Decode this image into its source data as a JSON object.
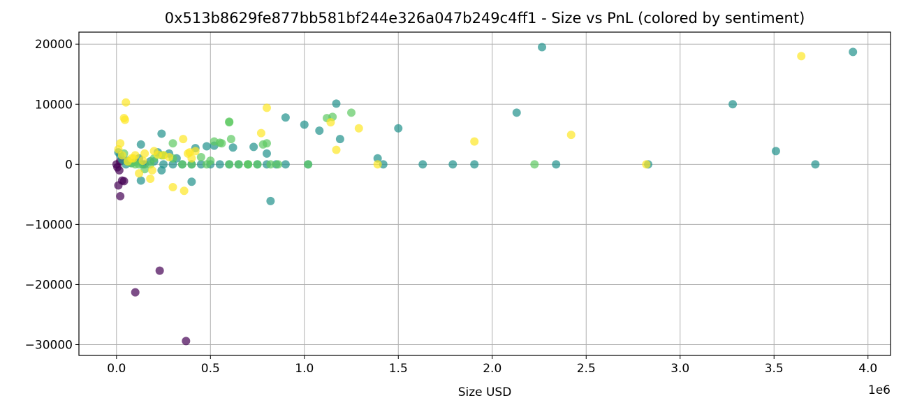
{
  "chart_data": {
    "type": "scatter",
    "title": "0x513b8629fe877bb581bf244e326a047b249c4ff1 - Size vs PnL (colored by sentiment)",
    "xlabel": "Size USD",
    "ylabel": "",
    "x_offset_label": "1e6",
    "xlim": [
      -200000,
      4120000
    ],
    "ylim": [
      -31800,
      22000
    ],
    "xticks": [
      0,
      500000,
      1000000,
      1500000,
      2000000,
      2500000,
      3000000,
      3500000,
      4000000
    ],
    "xtick_labels": [
      "0.0",
      "0.5",
      "1.0",
      "1.5",
      "2.0",
      "2.5",
      "3.0",
      "3.5",
      "4.0"
    ],
    "yticks": [
      -30000,
      -20000,
      -10000,
      0,
      10000,
      20000
    ],
    "ytick_labels": [
      "−30000",
      "−20000",
      "−10000",
      "0",
      "10000",
      "20000"
    ],
    "grid": true,
    "colors": {
      "purple": "#440154",
      "teal": "#21918c",
      "green": "#5ec962",
      "yellow": "#fde725"
    },
    "series": [
      {
        "color": "purple",
        "x": [
          0,
          10000,
          20000,
          30000,
          40000,
          100000,
          230000,
          370000,
          5000,
          15000,
          20000
        ],
        "y": [
          0,
          -3500,
          -5300,
          -2700,
          -2800,
          -21300,
          -17700,
          -29400,
          -500,
          -1000,
          500
        ]
      },
      {
        "color": "teal",
        "x": [
          2265000,
          3920000,
          3280000,
          3510000,
          3720000,
          2130000,
          1170000,
          1000000,
          1080000,
          1190000,
          900000,
          1390000,
          1500000,
          1420000,
          1630000,
          1790000,
          1905000,
          2340000,
          2830000,
          820000,
          400000,
          240000,
          130000,
          130000,
          50000,
          80000,
          100000,
          150000,
          200000,
          250000,
          280000,
          300000,
          350000,
          400000,
          450000,
          500000,
          550000,
          600000,
          650000,
          700000,
          750000,
          800000,
          850000,
          900000,
          30000,
          20000,
          10000,
          60000,
          120000,
          180000,
          220000,
          320000,
          420000,
          480000,
          520000,
          620000,
          730000,
          800000,
          1020000,
          140000,
          240000
        ],
        "y": [
          19500,
          18700,
          10000,
          2200,
          0,
          8600,
          10100,
          6600,
          5600,
          4200,
          7800,
          1000,
          6000,
          0,
          0,
          0,
          0,
          0,
          0,
          -6100,
          -2900,
          5100,
          3300,
          -2700,
          0,
          200,
          400,
          0,
          500,
          0,
          1800,
          0,
          0,
          0,
          0,
          0,
          0,
          0,
          0,
          0,
          0,
          0,
          0,
          0,
          800,
          1500,
          2000,
          600,
          1000,
          500,
          2000,
          1000,
          2700,
          3000,
          3100,
          2800,
          2900,
          1800,
          0,
          0,
          -1000
        ]
      },
      {
        "color": "green",
        "x": [
          1250000,
          1120000,
          1150000,
          2225000,
          600000,
          600000,
          610000,
          550000,
          520000,
          560000,
          780000,
          800000,
          700000,
          650000,
          450000,
          500000,
          300000,
          250000,
          200000,
          150000,
          100000,
          80000,
          60000,
          120000,
          180000,
          350000,
          400000,
          480000,
          600000,
          700000,
          750000,
          820000,
          860000,
          1020000,
          300000,
          240000,
          40000
        ],
        "y": [
          8600,
          7700,
          7900,
          0,
          7100,
          7000,
          4200,
          3600,
          3800,
          3500,
          3300,
          3500,
          0,
          0,
          1200,
          600,
          3500,
          1500,
          1000,
          -800,
          0,
          200,
          400,
          0,
          0,
          0,
          0,
          0,
          0,
          0,
          0,
          0,
          0,
          0,
          1000,
          1500,
          1800
        ]
      },
      {
        "color": "yellow",
        "x": [
          3645000,
          2420000,
          1905000,
          1290000,
          1170000,
          1140000,
          1390000,
          2820000,
          800000,
          770000,
          50000,
          40000,
          45000,
          20000,
          360000,
          355000,
          300000,
          400000,
          390000,
          250000,
          200000,
          150000,
          100000,
          80000,
          60000,
          30000,
          10000,
          120000,
          180000,
          280000,
          420000,
          380000,
          220000,
          140000,
          90000,
          190000
        ],
        "y": [
          18000,
          4900,
          3800,
          6000,
          2400,
          7000,
          0,
          0,
          9400,
          5200,
          10300,
          7700,
          7400,
          3500,
          -4400,
          4200,
          -3800,
          1000,
          2000,
          1500,
          2200,
          1800,
          1500,
          1000,
          500,
          1500,
          2500,
          -1500,
          -2400,
          1200,
          2200,
          1800,
          1600,
          600,
          1000,
          -1000
        ]
      }
    ]
  }
}
